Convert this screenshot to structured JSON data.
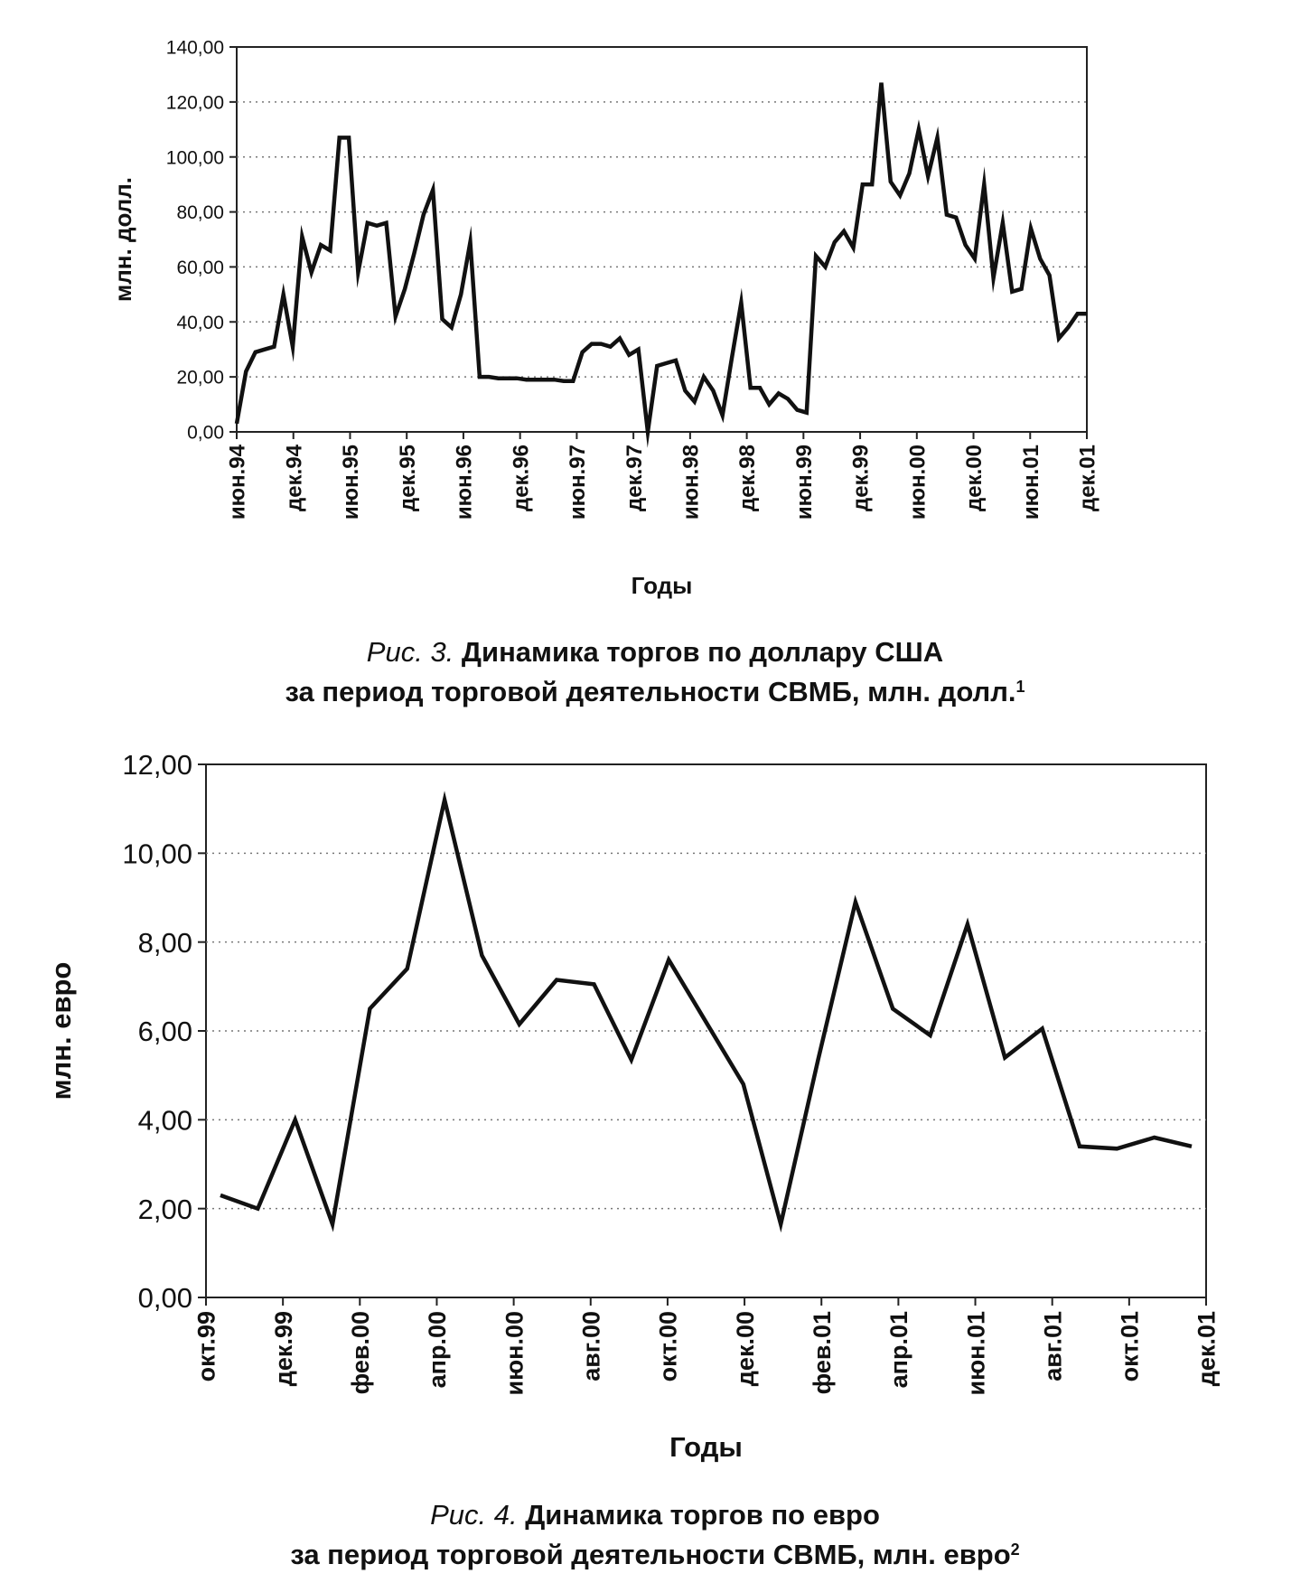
{
  "figure1": {
    "caption_prefix": "Рис. 3.",
    "caption_line1": "Динамика торгов по доллару США",
    "caption_line2": "за период торговой деятельности СВМБ, млн. долл.",
    "footnote_mark": "1"
  },
  "figure2": {
    "caption_prefix": "Рис. 4.",
    "caption_line1": "Динамика торгов по евро",
    "caption_line2": "за период торговой деятельности СВМБ, млн. евро",
    "footnote_mark": "2"
  },
  "chart_data": [
    {
      "type": "line",
      "xlabel": "Годы",
      "ylabel": "млн. долл.",
      "ylim": [
        0,
        140
      ],
      "yticks": [
        "0,00",
        "20,00",
        "40,00",
        "60,00",
        "80,00",
        "100,00",
        "120,00",
        "140,00"
      ],
      "xticks": [
        "июн.94",
        "дек.94",
        "июн.95",
        "дек.95",
        "июн.96",
        "дек.96",
        "июн.97",
        "дек.97",
        "июн.98",
        "дек.98",
        "июн.99",
        "дек.99",
        "июн.00",
        "дек.00",
        "июн.01",
        "дек.01"
      ],
      "x_start": "июн.94",
      "grid": "horizontal dashed",
      "series": [
        {
          "values": [
            3,
            22,
            29,
            30,
            31,
            50,
            31,
            71,
            58,
            68,
            66,
            107,
            107,
            58,
            76,
            75,
            76,
            42,
            52,
            65,
            79,
            88,
            41,
            38,
            50,
            69,
            20,
            20,
            19.5,
            19.5,
            19.5,
            19,
            19,
            19,
            19,
            18.5,
            18.5,
            29,
            32,
            32,
            31,
            34,
            28,
            30,
            0,
            24,
            25,
            26,
            15,
            11,
            20,
            15,
            6,
            27,
            47,
            16,
            16,
            10,
            14,
            12,
            8,
            7,
            64,
            60,
            69,
            73,
            67,
            90,
            90,
            127,
            91,
            86,
            94,
            110,
            93,
            107,
            79,
            78,
            68,
            63,
            90,
            56,
            76,
            51,
            52,
            74,
            63,
            57,
            34,
            38,
            43,
            43
          ]
        }
      ]
    },
    {
      "type": "line",
      "xlabel": "Годы",
      "ylabel": "млн. евро",
      "ylim": [
        0,
        12
      ],
      "yticks": [
        "0,00",
        "2,00",
        "4,00",
        "6,00",
        "8,00",
        "10,00",
        "12,00"
      ],
      "xticks": [
        "окт.99",
        "дек.99",
        "фев.00",
        "апр.00",
        "июн.00",
        "авг.00",
        "окт.00",
        "дек.00",
        "фев.01",
        "апр.01",
        "июн.01",
        "авг.01",
        "окт.01",
        "дек.01"
      ],
      "x_start": "окт.99",
      "grid": "horizontal dashed",
      "series": [
        {
          "values": [
            2.3,
            2.0,
            4.0,
            1.65,
            6.5,
            7.4,
            11.2,
            7.7,
            6.15,
            7.15,
            7.05,
            5.35,
            7.6,
            6.2,
            4.8,
            1.65,
            5.35,
            8.9,
            6.5,
            5.9,
            8.4,
            5.4,
            6.05,
            3.4,
            3.35,
            3.6,
            3.4
          ]
        }
      ]
    }
  ]
}
